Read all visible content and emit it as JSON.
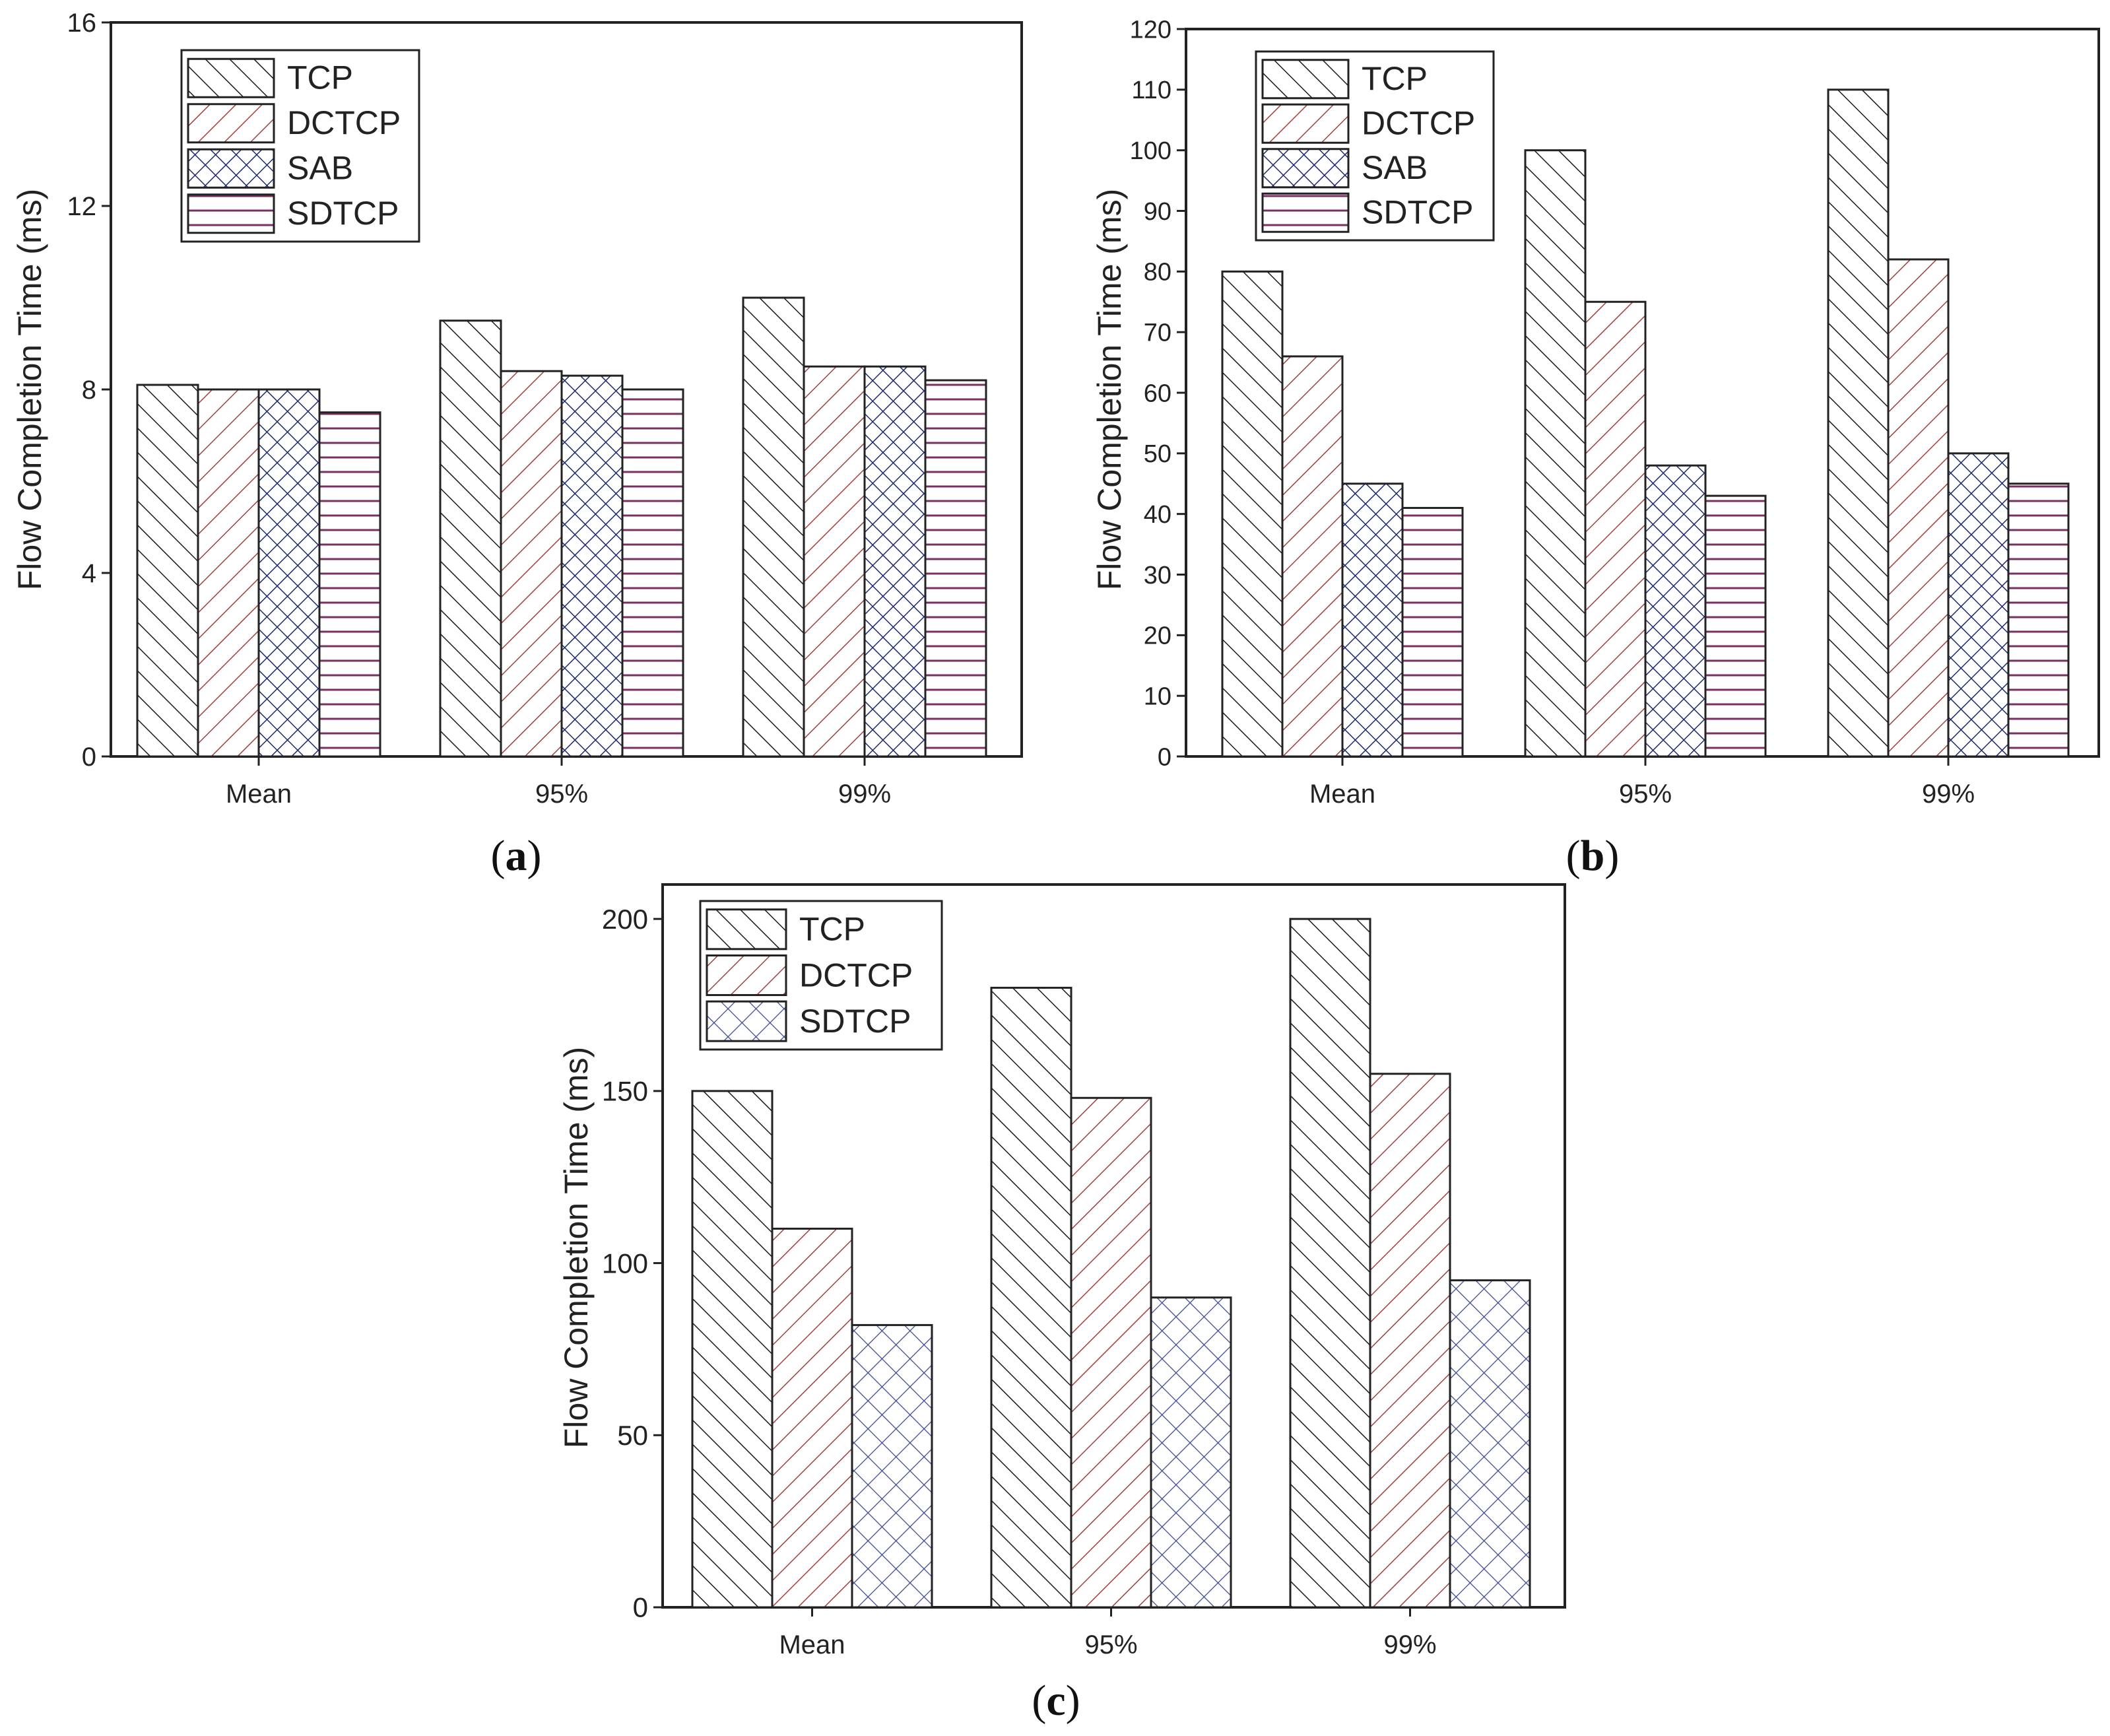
{
  "patterns": {
    "TCP": "diag-black",
    "DCTCP": "diag-red",
    "SAB": "cross-navy",
    "SDTCP": "horiz-purple",
    "SDTCP_c": "cross-navy-light"
  },
  "colors": {
    "tcp": "#1a1a1a",
    "dctcp": "#a04040",
    "sab": "#1c2a6e",
    "sdtcp": "#7a3060"
  },
  "chart_data": [
    {
      "id": "a",
      "type": "bar",
      "caption_letter": "a",
      "categories": [
        "Mean",
        "95%",
        "99%"
      ],
      "series": [
        {
          "name": "TCP",
          "pattern": "TCP",
          "values": [
            8.1,
            9.5,
            10.0
          ]
        },
        {
          "name": "DCTCP",
          "pattern": "DCTCP",
          "values": [
            8.0,
            8.4,
            8.5
          ]
        },
        {
          "name": "SAB",
          "pattern": "SAB",
          "values": [
            8.0,
            8.3,
            8.5
          ]
        },
        {
          "name": "SDTCP",
          "pattern": "SDTCP",
          "values": [
            7.5,
            8.0,
            8.2
          ]
        }
      ],
      "ylabel": "Flow Completion Time (ms)",
      "xlabel": "",
      "ylim": [
        0,
        16
      ],
      "yticks": [
        0,
        4,
        8,
        12,
        16
      ],
      "legend": "top-left"
    },
    {
      "id": "b",
      "type": "bar",
      "caption_letter": "b",
      "categories": [
        "Mean",
        "95%",
        "99%"
      ],
      "series": [
        {
          "name": "TCP",
          "pattern": "TCP",
          "values": [
            80,
            100,
            110
          ]
        },
        {
          "name": "DCTCP",
          "pattern": "DCTCP",
          "values": [
            66,
            75,
            82
          ]
        },
        {
          "name": "SAB",
          "pattern": "SAB",
          "values": [
            45,
            48,
            50
          ]
        },
        {
          "name": "SDTCP",
          "pattern": "SDTCP",
          "values": [
            41,
            43,
            45
          ]
        }
      ],
      "ylabel": "Flow Completion Time (ms)",
      "xlabel": "",
      "ylim": [
        0,
        120
      ],
      "yticks": [
        0,
        10,
        20,
        30,
        40,
        50,
        60,
        70,
        80,
        90,
        100,
        110,
        120
      ],
      "legend": "top-left"
    },
    {
      "id": "c",
      "type": "bar",
      "caption_letter": "c",
      "categories": [
        "Mean",
        "95%",
        "99%"
      ],
      "series": [
        {
          "name": "TCP",
          "pattern": "TCP",
          "values": [
            150,
            180,
            200
          ]
        },
        {
          "name": "DCTCP",
          "pattern": "DCTCP",
          "values": [
            110,
            148,
            155
          ]
        },
        {
          "name": "SDTCP",
          "pattern": "SDTCP_c",
          "values": [
            82,
            90,
            95
          ]
        }
      ],
      "ylabel": "Flow Completion Time (ms)",
      "xlabel": "",
      "ylim": [
        0,
        210
      ],
      "yticks": [
        0,
        50,
        100,
        150,
        200
      ],
      "legend": "top-left"
    }
  ]
}
